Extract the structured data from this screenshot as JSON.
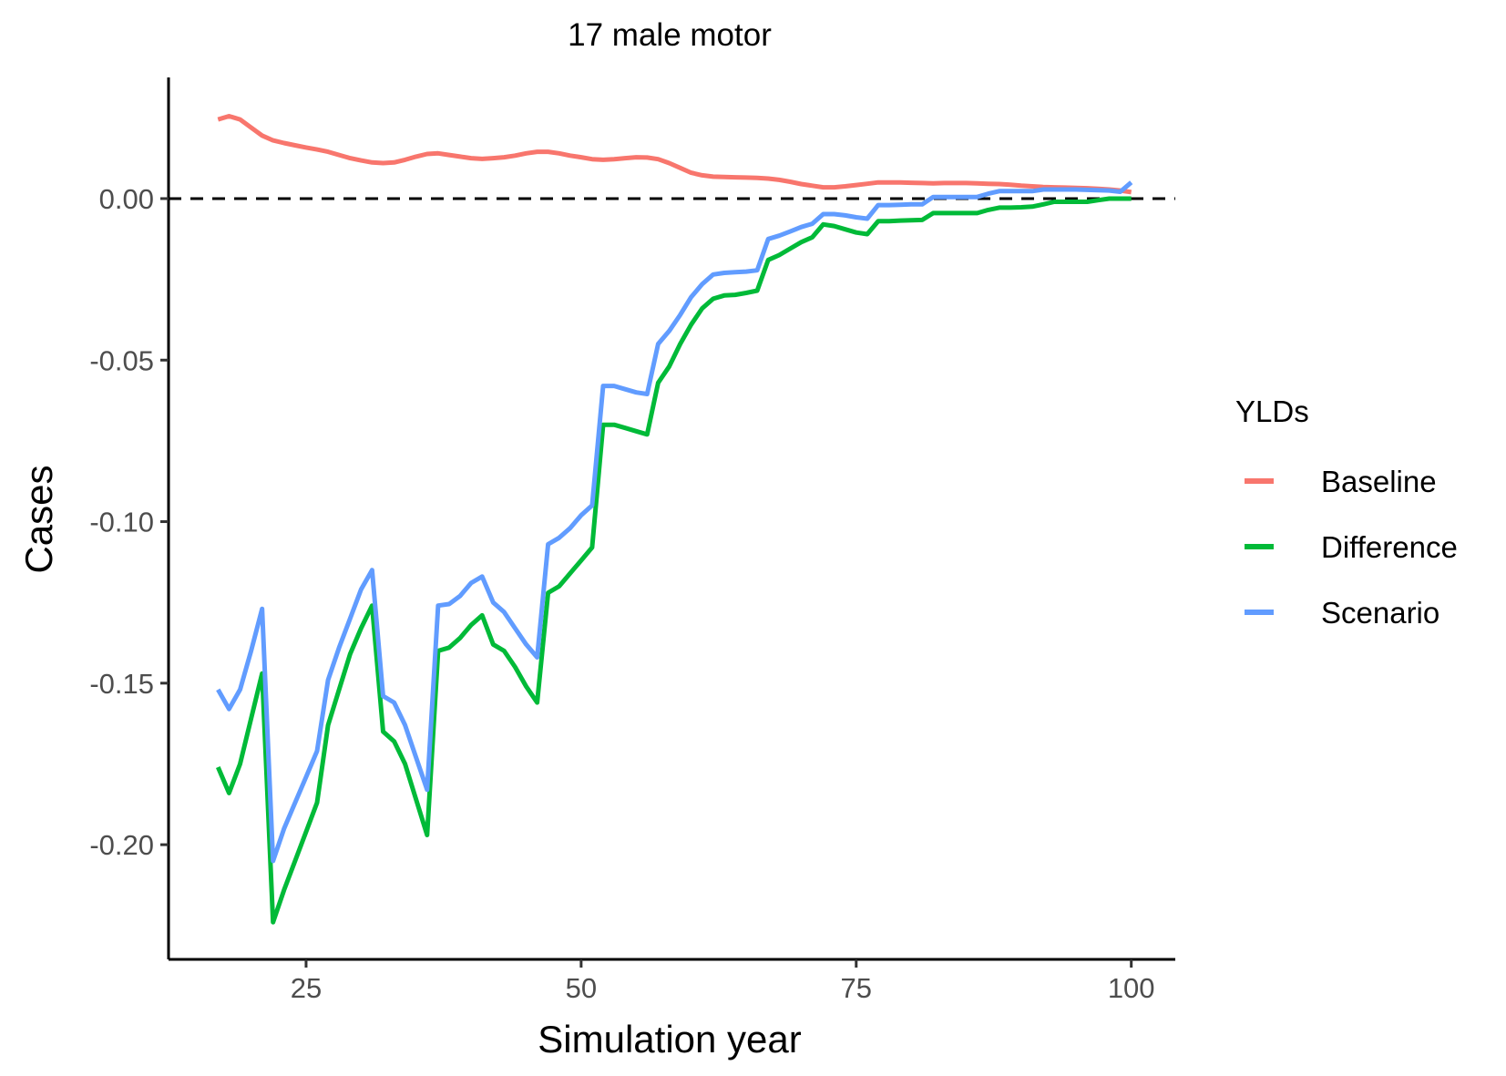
{
  "chart_data": {
    "type": "line",
    "title": "17 male motor",
    "xlabel": "Simulation year",
    "ylabel": "Cases",
    "xlim": [
      12.5,
      104
    ],
    "ylim": [
      -0.2355,
      0.0375
    ],
    "x_ticks": [
      25,
      50,
      75,
      100
    ],
    "x_tick_labels": [
      "25",
      "50",
      "75",
      "100"
    ],
    "y_ticks": [
      0.0,
      -0.05,
      -0.1,
      -0.15,
      -0.2
    ],
    "y_tick_labels": [
      "0.00",
      "-0.05",
      "-0.10",
      "-0.15",
      "-0.20"
    ],
    "reference_line": {
      "y": 0,
      "style": "dashed",
      "color": "#000000"
    },
    "grid": false,
    "legend": {
      "title": "YLDs",
      "position": "right"
    },
    "x": [
      17,
      18,
      19,
      20,
      21,
      22,
      23,
      24,
      25,
      26,
      27,
      28,
      29,
      30,
      31,
      32,
      33,
      34,
      35,
      36,
      37,
      38,
      39,
      40,
      41,
      42,
      43,
      44,
      45,
      46,
      47,
      48,
      49,
      50,
      51,
      52,
      53,
      54,
      55,
      56,
      57,
      58,
      59,
      60,
      61,
      62,
      63,
      64,
      65,
      66,
      67,
      68,
      69,
      70,
      71,
      72,
      73,
      74,
      75,
      76,
      77,
      78,
      79,
      80,
      81,
      82,
      83,
      84,
      85,
      86,
      87,
      88,
      89,
      90,
      91,
      92,
      93,
      94,
      95,
      96,
      97,
      98,
      99,
      100
    ],
    "series": [
      {
        "name": "Baseline",
        "color": "#F8766D",
        "values": [
          0.0245,
          0.0255,
          0.0245,
          0.022,
          0.0195,
          0.018,
          0.0172,
          0.0165,
          0.0158,
          0.0152,
          0.0145,
          0.0135,
          0.0125,
          0.0118,
          0.0112,
          0.011,
          0.0112,
          0.012,
          0.013,
          0.0138,
          0.014,
          0.0135,
          0.013,
          0.0125,
          0.0123,
          0.0125,
          0.0128,
          0.0133,
          0.014,
          0.0145,
          0.0145,
          0.014,
          0.0133,
          0.0128,
          0.0122,
          0.012,
          0.0122,
          0.0125,
          0.0128,
          0.0127,
          0.0122,
          0.011,
          0.0095,
          0.008,
          0.0072,
          0.0068,
          0.0067,
          0.0066,
          0.0065,
          0.0064,
          0.0062,
          0.0058,
          0.0052,
          0.0045,
          0.004,
          0.0035,
          0.0035,
          0.0038,
          0.0042,
          0.0046,
          0.005,
          0.005,
          0.005,
          0.0049,
          0.0048,
          0.0047,
          0.0048,
          0.0048,
          0.0048,
          0.0047,
          0.0046,
          0.0045,
          0.0043,
          0.004,
          0.0038,
          0.0036,
          0.0035,
          0.0034,
          0.0033,
          0.0032,
          0.003,
          0.0028,
          0.0025,
          0.002
        ]
      },
      {
        "name": "Difference",
        "color": "#00BA38",
        "values": [
          -0.176,
          -0.184,
          -0.175,
          -0.161,
          -0.147,
          -0.224,
          -0.214,
          -0.205,
          -0.196,
          -0.187,
          -0.163,
          -0.152,
          -0.141,
          -0.133,
          -0.126,
          -0.165,
          -0.168,
          -0.175,
          -0.186,
          -0.197,
          -0.14,
          -0.139,
          -0.136,
          -0.132,
          -0.129,
          -0.138,
          -0.14,
          -0.145,
          -0.151,
          -0.156,
          -0.122,
          -0.12,
          -0.116,
          -0.112,
          -0.108,
          -0.07,
          -0.07,
          -0.071,
          -0.072,
          -0.073,
          -0.057,
          -0.052,
          -0.045,
          -0.039,
          -0.034,
          -0.031,
          -0.03,
          -0.0298,
          -0.0292,
          -0.0285,
          -0.019,
          -0.0175,
          -0.0155,
          -0.0135,
          -0.012,
          -0.008,
          -0.0085,
          -0.0095,
          -0.0105,
          -0.011,
          -0.007,
          -0.007,
          -0.0068,
          -0.0067,
          -0.0066,
          -0.0045,
          -0.0045,
          -0.0045,
          -0.0045,
          -0.0045,
          -0.0035,
          -0.0028,
          -0.0028,
          -0.0027,
          -0.0025,
          -0.0018,
          -0.001,
          -0.001,
          -0.001,
          -0.001,
          -0.0005,
          0,
          0,
          0
        ]
      },
      {
        "name": "Scenario",
        "color": "#619CFF",
        "values": [
          -0.152,
          -0.158,
          -0.152,
          -0.14,
          -0.127,
          -0.205,
          -0.195,
          -0.187,
          -0.179,
          -0.171,
          -0.149,
          -0.139,
          -0.13,
          -0.121,
          -0.115,
          -0.154,
          -0.156,
          -0.163,
          -0.173,
          -0.183,
          -0.126,
          -0.1255,
          -0.123,
          -0.119,
          -0.117,
          -0.125,
          -0.128,
          -0.133,
          -0.138,
          -0.142,
          -0.107,
          -0.105,
          -0.102,
          -0.098,
          -0.095,
          -0.058,
          -0.058,
          -0.059,
          -0.06,
          -0.0605,
          -0.045,
          -0.041,
          -0.036,
          -0.0305,
          -0.0265,
          -0.0235,
          -0.023,
          -0.0228,
          -0.0226,
          -0.0222,
          -0.0125,
          -0.0115,
          -0.0102,
          -0.0088,
          -0.0078,
          -0.0048,
          -0.0048,
          -0.0052,
          -0.0058,
          -0.0062,
          -0.002,
          -0.002,
          -0.0019,
          -0.0018,
          -0.0018,
          0.0005,
          0.0005,
          0.0005,
          0.0005,
          0.0005,
          0.0015,
          0.0023,
          0.0023,
          0.0023,
          0.0023,
          0.0028,
          0.0028,
          0.0028,
          0.0028,
          0.0027,
          0.0026,
          0.0025,
          0.0021,
          0.005
        ]
      }
    ]
  }
}
